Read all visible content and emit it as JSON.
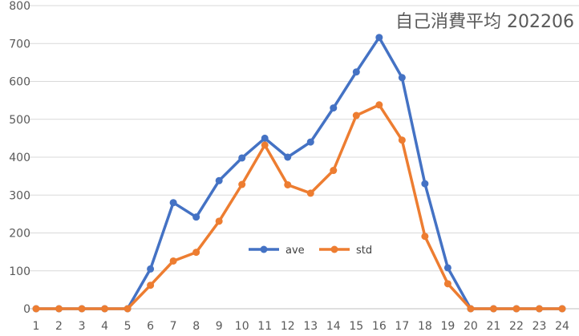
{
  "chart_data": {
    "type": "line",
    "title": "自己消費平均  202206",
    "x": [
      1,
      2,
      3,
      4,
      5,
      6,
      7,
      8,
      9,
      10,
      11,
      12,
      13,
      14,
      15,
      16,
      17,
      18,
      19,
      20,
      21,
      22,
      23,
      24
    ],
    "ylim": [
      0,
      800
    ],
    "yticks": [
      0,
      100,
      200,
      300,
      400,
      500,
      600,
      700,
      800
    ],
    "grid": true,
    "legend_position": "center",
    "series": [
      {
        "name": "ave",
        "color": "#4472C4",
        "values": [
          0,
          0,
          0,
          0,
          0,
          105,
          280,
          242,
          338,
          398,
          450,
          400,
          440,
          530,
          625,
          716,
          610,
          330,
          108,
          0,
          0,
          0,
          0,
          0
        ]
      },
      {
        "name": "std",
        "color": "#ED7D31",
        "values": [
          0,
          0,
          0,
          0,
          0,
          62,
          126,
          149,
          231,
          328,
          432,
          327,
          305,
          365,
          510,
          538,
          445,
          191,
          66,
          0,
          0,
          0,
          0,
          0
        ]
      }
    ]
  }
}
